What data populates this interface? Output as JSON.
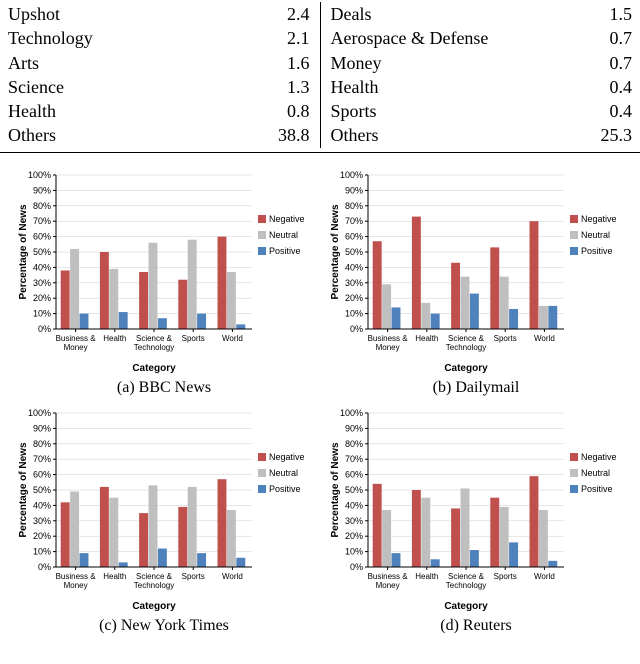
{
  "table": {
    "left": [
      {
        "label": "Upshot",
        "value": "2.4"
      },
      {
        "label": "Technology",
        "value": "2.1"
      },
      {
        "label": "Arts",
        "value": "1.6"
      },
      {
        "label": "Science",
        "value": "1.3"
      },
      {
        "label": "Health",
        "value": "0.8"
      },
      {
        "label": "Others",
        "value": "38.8"
      }
    ],
    "right": [
      {
        "label": "Deals",
        "value": "1.5"
      },
      {
        "label": "Aerospace & Defense",
        "value": "0.7"
      },
      {
        "label": "Money",
        "value": "0.7"
      },
      {
        "label": "Health",
        "value": "0.4"
      },
      {
        "label": "Sports",
        "value": "0.4"
      },
      {
        "label": "Others",
        "value": "25.3"
      }
    ]
  },
  "chart_config": {
    "ylabel": "Percentage of News",
    "xlabel": "Category",
    "categories": [
      "Business &\nMoney",
      "Health",
      "Science &\nTechnology",
      "Sports",
      "World"
    ],
    "ylim": [
      0,
      100
    ],
    "ytick_step": 10,
    "colors": {
      "negative": "#c0504d",
      "neutral": "#bfbfbf",
      "positive": "#4f81bd"
    },
    "legend": [
      "Negative",
      "Neutral",
      "Positive"
    ],
    "bar_width": 0.24,
    "grid_color": "#cccccc",
    "axis_color": "#000000",
    "background_color": "#ffffff",
    "label_fontsize": 10,
    "tick_fontsize": 9,
    "caption_fontsize": 16
  },
  "charts": [
    {
      "id": "bbc",
      "caption": "(a) BBC News",
      "series": {
        "negative": [
          38,
          50,
          37,
          32,
          60
        ],
        "neutral": [
          52,
          39,
          56,
          58,
          37
        ],
        "positive": [
          10,
          11,
          7,
          10,
          3
        ]
      }
    },
    {
      "id": "dailymail",
      "caption": "(b) Dailymail",
      "series": {
        "negative": [
          57,
          73,
          43,
          53,
          70
        ],
        "neutral": [
          29,
          17,
          34,
          34,
          15
        ],
        "positive": [
          14,
          10,
          23,
          13,
          15
        ]
      }
    },
    {
      "id": "nyt",
      "caption": "(c) New York Times",
      "series": {
        "negative": [
          42,
          52,
          35,
          39,
          57
        ],
        "neutral": [
          49,
          45,
          53,
          52,
          37
        ],
        "positive": [
          9,
          3,
          12,
          9,
          6
        ]
      }
    },
    {
      "id": "reuters",
      "caption": "(d) Reuters",
      "series": {
        "negative": [
          54,
          50,
          38,
          45,
          59
        ],
        "neutral": [
          37,
          45,
          51,
          39,
          37
        ],
        "positive": [
          9,
          5,
          11,
          16,
          4
        ]
      }
    }
  ]
}
